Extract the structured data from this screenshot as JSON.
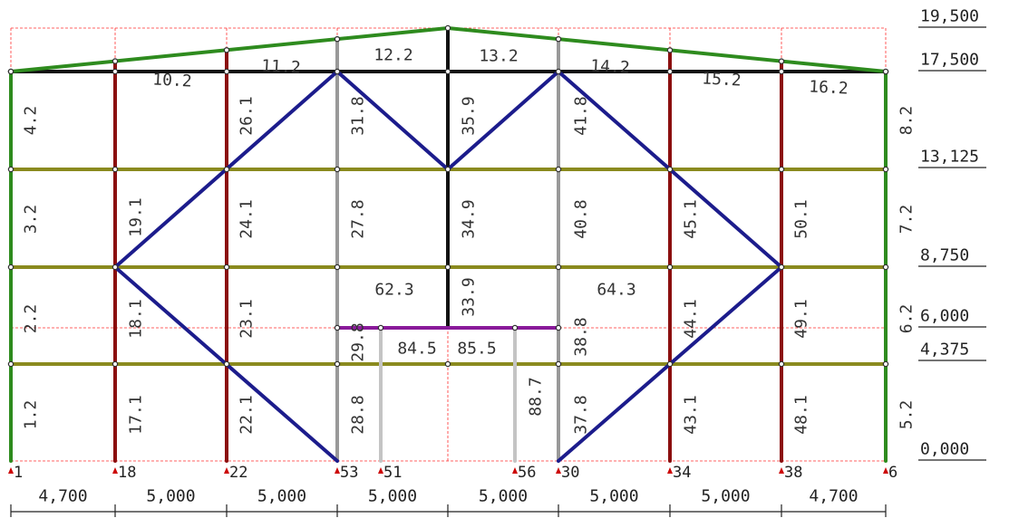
{
  "colors": {
    "grid": "#ff3030",
    "roof": "#2e8b1e",
    "beam_top": "#111111",
    "column_outer": "#2e8b1e",
    "column_main": "#8b0f0f",
    "column_inner": "#999999",
    "column_center": "#111111",
    "floor_beam": "#8a8a1e",
    "brace": "#1c1c8c",
    "transfer": "#8a1a9a",
    "hanger": "#c4c4c4",
    "support": "#cc0000"
  },
  "elevations": [
    "19,500",
    "17,500",
    "13,125",
    "8,750",
    "6,000",
    "4,375",
    "0,000"
  ],
  "spans": [
    "4,700",
    "5,000",
    "5,000",
    "5,000",
    "5,000",
    "5,000",
    "5,000",
    "4,700"
  ],
  "supports": [
    "1",
    "18",
    "22",
    "53",
    "51",
    "56",
    "30",
    "34",
    "38",
    "6"
  ],
  "roof_labels": [
    "10.2",
    "11.2",
    "12.2",
    "13.2",
    "14.2",
    "15.2",
    "16.2"
  ],
  "member_labels": [
    "4.2",
    "3.2",
    "2.2",
    "1.2",
    "19.1",
    "18.1",
    "17.1",
    "26.1",
    "24.1",
    "23.1",
    "22.1",
    "31.8",
    "27.8",
    "29.8",
    "28.8",
    "35.9",
    "34.9",
    "33.9",
    "41.8",
    "40.8",
    "38.8",
    "37.8",
    "45.1",
    "44.1",
    "43.1",
    "50.1",
    "49.1",
    "48.1",
    "8.2",
    "7.2",
    "6.2",
    "5.2",
    "88.7"
  ],
  "panel_labels": [
    "62.3",
    "64.3",
    "84.5",
    "85.5"
  ]
}
